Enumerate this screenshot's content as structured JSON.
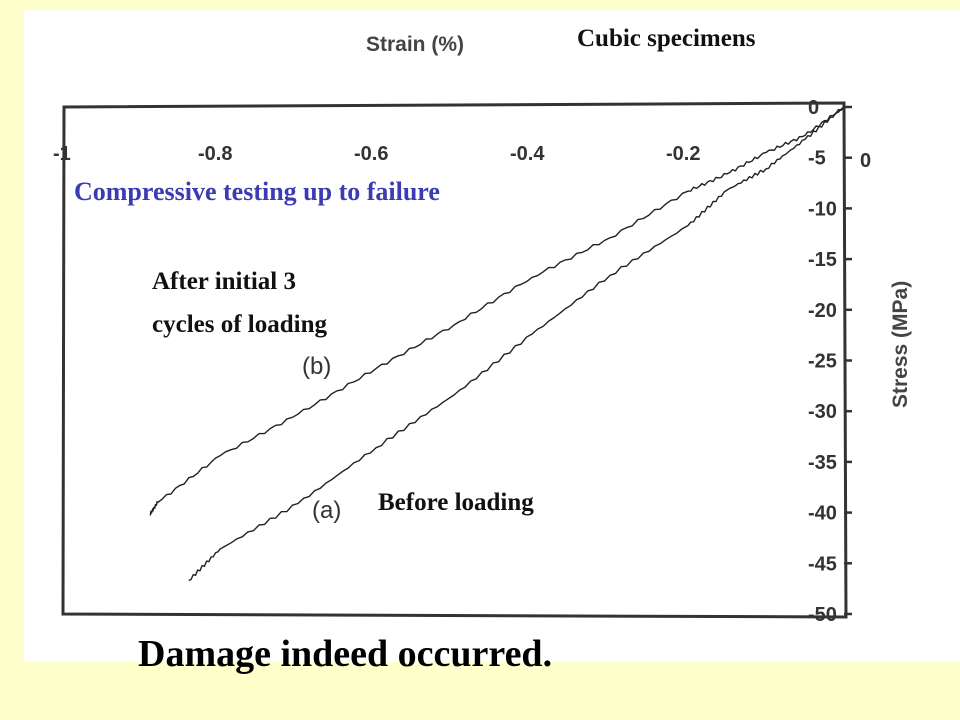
{
  "chart_data": {
    "type": "line",
    "title": "Cubic specimens",
    "xlabel": "Strain (%)",
    "ylabel": "Stress (MPa)",
    "xlim": [
      -1,
      0
    ],
    "ylim": [
      -50,
      0
    ],
    "x_ticks": [
      -1,
      -0.8,
      -0.6,
      -0.4,
      -0.2,
      0
    ],
    "x_tick_labels": [
      "-1",
      "-0.8",
      "-0.6",
      "-0.4",
      "-0.2",
      "0"
    ],
    "y_ticks": [
      0,
      -5,
      -10,
      -15,
      -20,
      -25,
      -30,
      -35,
      -40,
      -45,
      -50
    ],
    "y_tick_labels": [
      "0",
      "-5",
      "-10",
      "-15",
      "-20",
      "-25",
      "-30",
      "-35",
      "-40",
      "-45",
      "-50"
    ],
    "x_axis_position": "top",
    "y_axis_position": "right",
    "grid": false,
    "series": [
      {
        "name": "(b)",
        "x": [
          0,
          -0.05,
          -0.1,
          -0.15,
          -0.2,
          -0.3,
          -0.4,
          -0.5,
          -0.6,
          -0.7,
          -0.8,
          -0.88,
          -0.89
        ],
        "y": [
          0,
          -2.8,
          -4.5,
          -6.6,
          -8.3,
          -12.9,
          -16.8,
          -21.5,
          -25.8,
          -30.3,
          -34.4,
          -39.0,
          -40.2
        ]
      },
      {
        "name": "(a)",
        "x": [
          0,
          -0.05,
          -0.1,
          -0.15,
          -0.2,
          -0.3,
          -0.4,
          -0.5,
          -0.6,
          -0.7,
          -0.8,
          -0.84
        ],
        "y": [
          0,
          -3.2,
          -6.1,
          -8.2,
          -11.7,
          -16.6,
          -22.4,
          -28.4,
          -33.6,
          -39.1,
          -43.6,
          -46.7
        ]
      }
    ],
    "annotations": {
      "compressive": "Compressive testing up to failure",
      "after_line1": "After initial 3",
      "after_line2": "cycles of loading",
      "before": "Before loading"
    }
  },
  "conclusion": "Damage indeed occurred.",
  "colors": {
    "background": "#ffffcc",
    "panel": "#ffffff",
    "curve": "#222222",
    "annotation_blue": "#3b3bb3"
  }
}
